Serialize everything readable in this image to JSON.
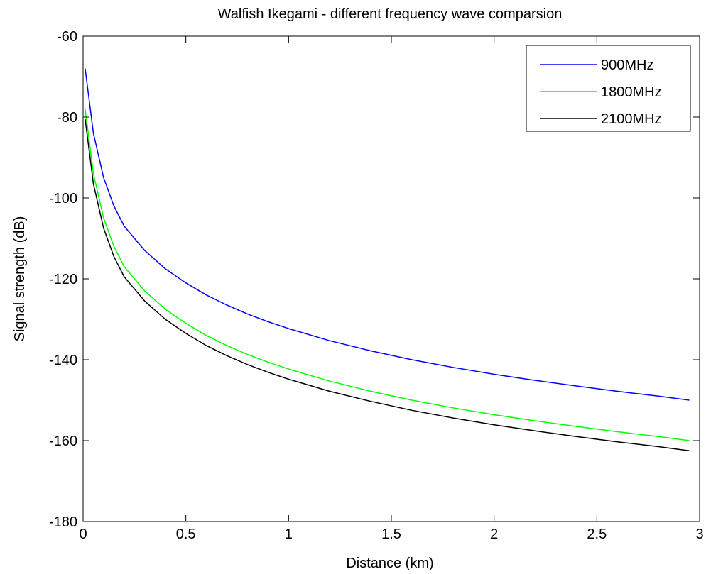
{
  "chart_data": {
    "type": "line",
    "title": "Walfish Ikegami - different frequency wave comparsion",
    "xlabel": "Distance (km)",
    "ylabel": "Signal strength (dB)",
    "xlim": [
      0,
      3
    ],
    "ylim": [
      -180,
      -60
    ],
    "xticks": [
      0,
      0.5,
      1,
      1.5,
      2,
      2.5,
      3
    ],
    "yticks": [
      -60,
      -80,
      -100,
      -120,
      -140,
      -160,
      -180
    ],
    "xtick_labels": [
      "0",
      "0.5",
      "1",
      "1.5",
      "2",
      "2.5",
      "3"
    ],
    "ytick_labels": [
      "-60",
      "-80",
      "-100",
      "-120",
      "-140",
      "-160",
      "-180"
    ],
    "grid": false,
    "legend_position": "top-right",
    "x": [
      0.01,
      0.02,
      0.05,
      0.1,
      0.15,
      0.2,
      0.3,
      0.4,
      0.5,
      0.6,
      0.7,
      0.8,
      0.9,
      1.0,
      1.2,
      1.4,
      1.6,
      1.8,
      2.0,
      2.2,
      2.4,
      2.6,
      2.8,
      2.95
    ],
    "series": [
      {
        "name": "900MHz",
        "color": "#0000ff",
        "values": [
          -68,
          -72,
          -84,
          -95,
          -102,
          -107,
          -113,
          -117.5,
          -121,
          -124,
          -126.5,
          -128.7,
          -130.6,
          -132.3,
          -135.3,
          -137.8,
          -140.0,
          -141.9,
          -143.6,
          -145.1,
          -146.5,
          -147.8,
          -149.0,
          -150.0
        ]
      },
      {
        "name": "1800MHz",
        "color": "#00ff00",
        "values": [
          -78,
          -82,
          -94,
          -105,
          -112,
          -117,
          -123,
          -127.5,
          -131,
          -134,
          -136.5,
          -138.7,
          -140.6,
          -142.3,
          -145.3,
          -147.8,
          -150.0,
          -151.9,
          -153.6,
          -155.1,
          -156.5,
          -157.8,
          -159.0,
          -160.0
        ]
      },
      {
        "name": "2100MHz",
        "color": "#000000",
        "values": [
          -80.5,
          -84.5,
          -96.5,
          -107.5,
          -114.5,
          -119.5,
          -125.5,
          -130.0,
          -133.5,
          -136.5,
          -139.0,
          -141.2,
          -143.1,
          -144.8,
          -147.8,
          -150.3,
          -152.5,
          -154.4,
          -156.1,
          -157.6,
          -159.0,
          -160.3,
          -161.5,
          -162.5
        ]
      }
    ]
  }
}
